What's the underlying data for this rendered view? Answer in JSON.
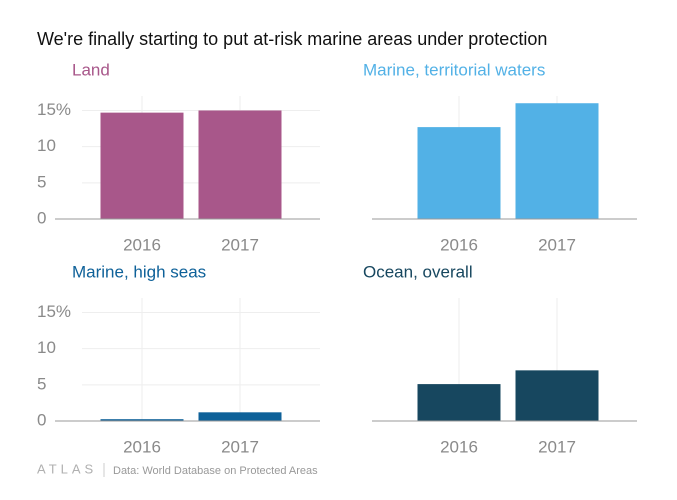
{
  "title": "We're finally starting to put at-risk marine areas under protection",
  "chart_data": [
    {
      "type": "bar",
      "title": "Land",
      "categories": [
        "2016",
        "2017"
      ],
      "values": [
        14.7,
        15.0
      ],
      "color": "#a8578a",
      "ylim": [
        0,
        17
      ],
      "yticks": [
        0,
        5,
        10,
        {
          "value": 15,
          "label": "15%"
        }
      ],
      "grid": true
    },
    {
      "type": "bar",
      "title": "Marine, territorial waters",
      "categories": [
        "2016",
        "2017"
      ],
      "values": [
        12.7,
        16.0
      ],
      "color": "#52b1e6",
      "ylim": [
        0,
        17
      ],
      "grid": true
    },
    {
      "type": "bar",
      "title": "Marine, high seas",
      "categories": [
        "2016",
        "2017"
      ],
      "values": [
        0.25,
        1.2
      ],
      "color": "#0e6199",
      "ylim": [
        0,
        17
      ],
      "yticks": [
        0,
        5,
        10,
        {
          "value": 15,
          "label": "15%"
        }
      ],
      "grid": true
    },
    {
      "type": "bar",
      "title": "Ocean, overall",
      "categories": [
        "2016",
        "2017"
      ],
      "values": [
        5.1,
        7.0
      ],
      "color": "#17475f",
      "ylim": [
        0,
        17
      ],
      "grid": true
    }
  ],
  "footer": {
    "logo": "ATLAS",
    "source": "Data: World Database on Protected Areas"
  }
}
